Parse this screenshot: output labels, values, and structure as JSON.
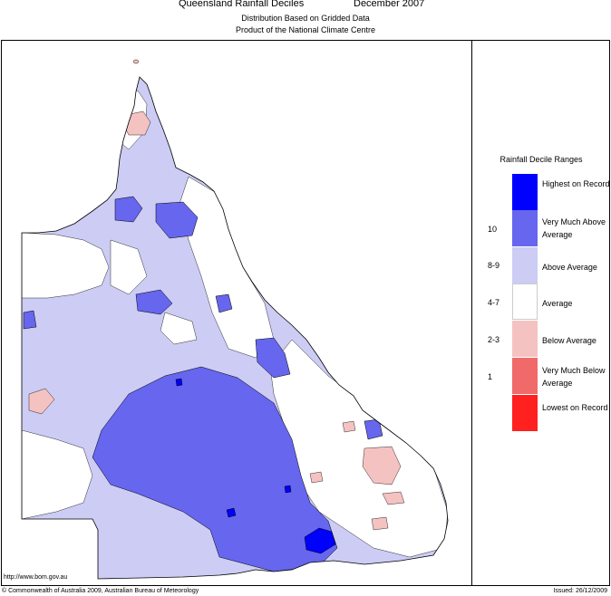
{
  "header": {
    "title": "Queensland Rainfall Deciles",
    "period": "December 2007",
    "subtitle_1": "Distribution Based on Gridded Data",
    "subtitle_2": "Product of the National Climate Centre"
  },
  "legend": {
    "title": "Rainfall Decile Ranges",
    "items": [
      {
        "code": "",
        "label": "Highest on Record",
        "color": "#0000ff"
      },
      {
        "code": "10",
        "label": "Very Much Above Average",
        "color": "#6666ee"
      },
      {
        "code": "8-9",
        "label": "Above Average",
        "color": "#ccccf5"
      },
      {
        "code": "4-7",
        "label": "Average",
        "color": "#ffffff"
      },
      {
        "code": "2-3",
        "label": "Below Average",
        "color": "#f5c2c2"
      },
      {
        "code": "1",
        "label": "Very Much Below Average",
        "color": "#f06a6a"
      },
      {
        "code": "",
        "label": "Lowest on Record",
        "color": "#ff2020"
      }
    ]
  },
  "footer": {
    "url": "http://www.bom.gov.au",
    "copyright": "© Commonwealth of Australia 2009, Australian Bureau of Meteorology",
    "issued": "Issued: 26/12/2009"
  }
}
